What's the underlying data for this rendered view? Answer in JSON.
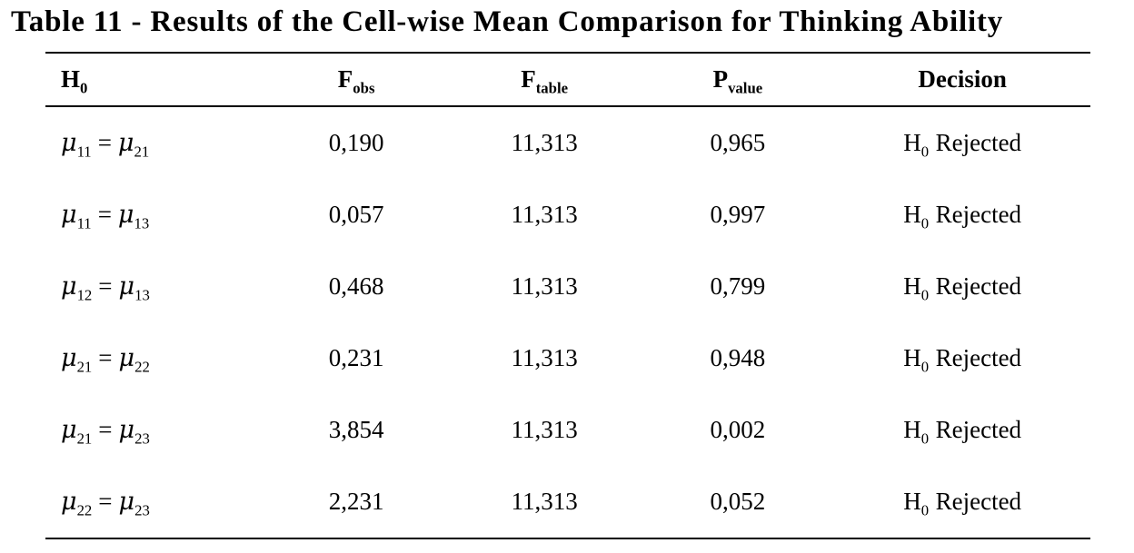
{
  "title": "Table 11 - Results of the Cell-wise Mean Comparison for Thinking Ability",
  "table": {
    "symbols": {
      "mu": "μ",
      "equals": "="
    },
    "headers": {
      "h0": {
        "base": "H",
        "sub": "0"
      },
      "f_obs": {
        "base": "F",
        "sub": "obs"
      },
      "f_table": {
        "base": "F",
        "sub": "table"
      },
      "p_value": {
        "base": "P",
        "sub": "value"
      },
      "decision": {
        "base": "Decision",
        "sub": ""
      }
    },
    "rows": [
      {
        "left_sub": "11",
        "right_sub": "21",
        "f_obs": "0,190",
        "f_table": "11,313",
        "p_value": "0,965",
        "decision_base": "H",
        "decision_sub": "0",
        "decision_text": "Rejected"
      },
      {
        "left_sub": "11",
        "right_sub": "13",
        "f_obs": "0,057",
        "f_table": "11,313",
        "p_value": "0,997",
        "decision_base": "H",
        "decision_sub": "0",
        "decision_text": "Rejected"
      },
      {
        "left_sub": "12",
        "right_sub": "13",
        "f_obs": "0,468",
        "f_table": "11,313",
        "p_value": "0,799",
        "decision_base": "H",
        "decision_sub": "0",
        "decision_text": "Rejected"
      },
      {
        "left_sub": "21",
        "right_sub": "22",
        "f_obs": "0,231",
        "f_table": "11,313",
        "p_value": "0,948",
        "decision_base": "H",
        "decision_sub": "0",
        "decision_text": "Rejected"
      },
      {
        "left_sub": "21",
        "right_sub": "23",
        "f_obs": "3,854",
        "f_table": "11,313",
        "p_value": "0,002",
        "decision_base": "H",
        "decision_sub": "0",
        "decision_text": "Rejected"
      },
      {
        "left_sub": "22",
        "right_sub": "23",
        "f_obs": "2,231",
        "f_table": "11,313",
        "p_value": "0,052",
        "decision_base": "H",
        "decision_sub": "0",
        "decision_text": "Rejected"
      }
    ]
  }
}
